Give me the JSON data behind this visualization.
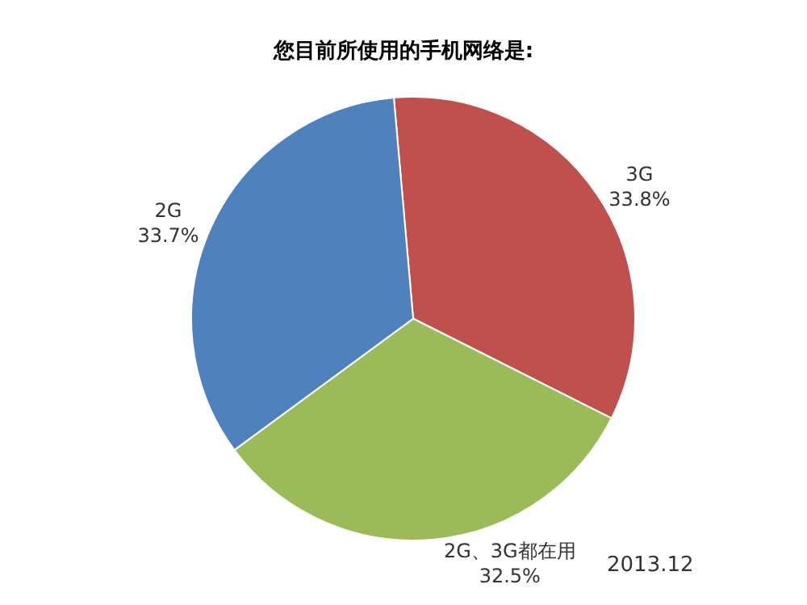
{
  "chart_data": {
    "type": "pie",
    "title": "您目前所使用的手机网络是:",
    "categories": [
      "3G",
      "2G、3G都在用",
      "2G"
    ],
    "values": [
      33.8,
      32.5,
      33.7
    ],
    "value_labels": [
      "33.8%",
      "32.5%",
      "33.7%"
    ],
    "colors": [
      "#c0504d",
      "#9bbb59",
      "#4f81bd"
    ],
    "legend": false,
    "annotations": [
      "2013.12"
    ]
  }
}
